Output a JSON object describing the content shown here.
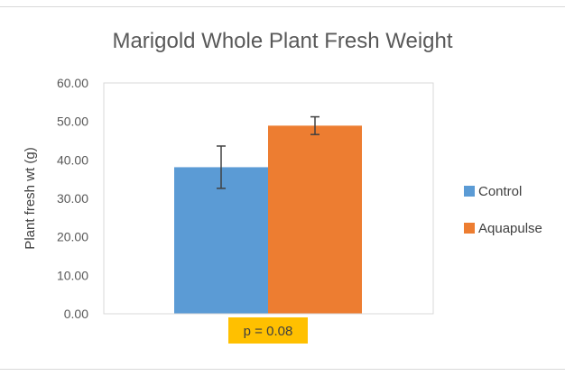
{
  "chart_data": {
    "type": "bar",
    "title": "Marigold Whole Plant Fresh Weight",
    "ylabel": "Plant fresh wt (g)",
    "xlabel": "",
    "ylim": [
      0,
      60
    ],
    "yticks": [
      "0.00",
      "10.00",
      "20.00",
      "30.00",
      "40.00",
      "50.00",
      "60.00"
    ],
    "gridlines": false,
    "legend_position": "right",
    "series": [
      {
        "name": "Control",
        "value": 38.1,
        "error": 5.5,
        "color": "#5b9bd5"
      },
      {
        "name": "Aquapulse",
        "value": 48.9,
        "error": 2.3,
        "color": "#ed7d31"
      }
    ],
    "annotation": {
      "text": "p = 0.08",
      "highlight_color": "#ffc000"
    }
  }
}
